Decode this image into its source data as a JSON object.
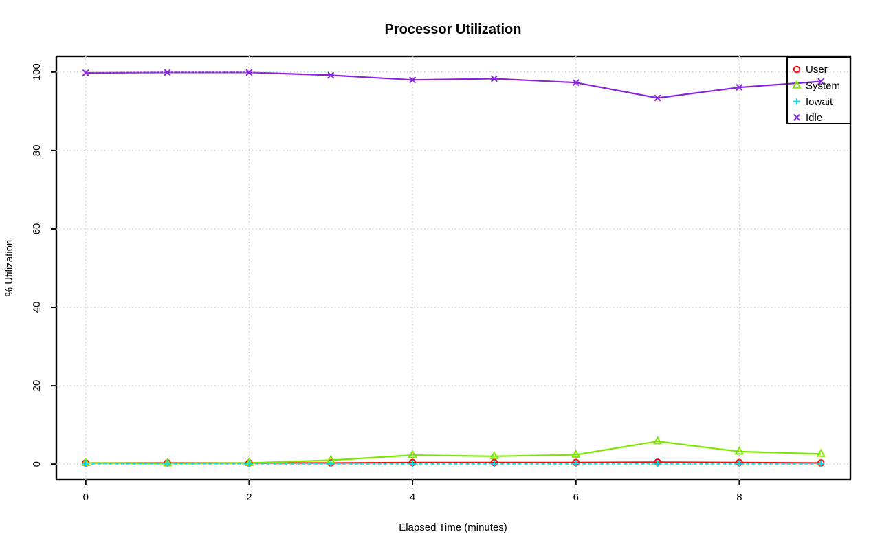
{
  "chart_data": {
    "type": "line",
    "title": "Processor Utilization",
    "xlabel": "Elapsed Time (minutes)",
    "ylabel": "% Utilization",
    "x": [
      0,
      1,
      2,
      3,
      4,
      5,
      6,
      7,
      8,
      9
    ],
    "series": [
      {
        "name": "User",
        "color": "#ee1111",
        "marker": "circle",
        "line_style": "solid",
        "values": [
          0.3,
          0.3,
          0.3,
          0.3,
          0.4,
          0.4,
          0.4,
          0.5,
          0.4,
          0.3
        ]
      },
      {
        "name": "System",
        "color": "#7ce800",
        "marker": "triangle",
        "line_style": "solid",
        "values": [
          0.3,
          0.2,
          0.3,
          1.0,
          2.3,
          2.0,
          2.4,
          5.8,
          3.2,
          2.6
        ]
      },
      {
        "name": "Iowait",
        "color": "#00dcec",
        "marker": "plus",
        "line_style": "dashed",
        "values": [
          0.1,
          0.1,
          0.1,
          0.1,
          0.1,
          0.1,
          0.1,
          0.1,
          0.1,
          0.1
        ]
      },
      {
        "name": "Idle",
        "color": "#8823dd",
        "marker": "x",
        "line_style": "solid",
        "values": [
          99.8,
          99.9,
          99.9,
          99.2,
          98.0,
          98.3,
          97.3,
          93.4,
          96.1,
          97.6
        ]
      }
    ],
    "x_ticks": [
      0,
      2,
      4,
      6,
      8
    ],
    "y_ticks": [
      0,
      20,
      40,
      60,
      80,
      100
    ],
    "xlim": [
      0,
      9
    ],
    "ylim": [
      0,
      100
    ],
    "grid": {
      "show": true,
      "style": "dotted",
      "color": "#c9c9c9",
      "x_at": [
        0,
        2,
        4,
        6,
        8
      ],
      "y_at": [
        0,
        20,
        40,
        60,
        80,
        100
      ]
    },
    "legend": {
      "position": "top-right",
      "items": [
        "User",
        "System",
        "Iowait",
        "Idle"
      ]
    },
    "frame_color": "#000000",
    "background": "#ffffff"
  }
}
